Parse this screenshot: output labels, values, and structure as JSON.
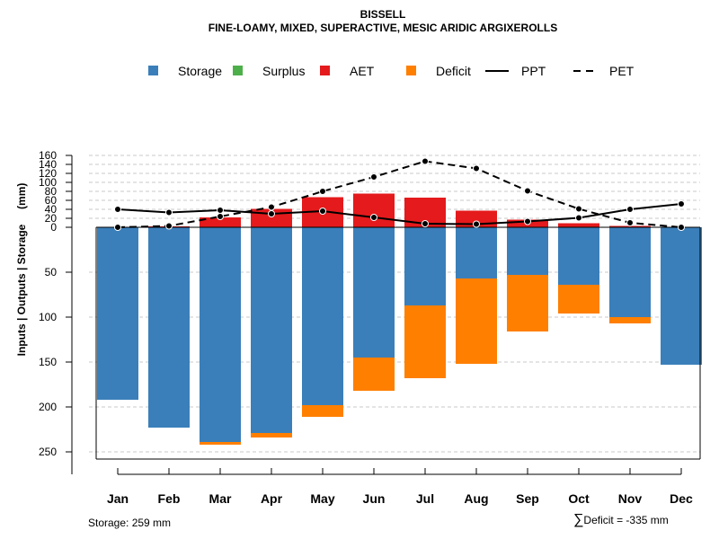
{
  "chart_data": {
    "type": "bar",
    "title": "BISSELL",
    "subtitle": "FINE-LOAMY, MIXED, SUPERACTIVE, MESIC ARIDIC ARGIXEROLLS",
    "ylabel": "Inputs | Outputs | Storage     (mm)",
    "categories": [
      "Jan",
      "Feb",
      "Mar",
      "Apr",
      "May",
      "Jun",
      "Jul",
      "Aug",
      "Sep",
      "Oct",
      "Nov",
      "Dec"
    ],
    "upper_ticks": [
      0,
      20,
      40,
      60,
      80,
      100,
      120,
      140,
      160
    ],
    "lower_ticks": [
      50,
      100,
      150,
      200,
      250
    ],
    "upper_ylim": [
      0,
      160
    ],
    "lower_ylim": [
      0,
      259
    ],
    "legend": [
      {
        "name": "Storage",
        "type": "box",
        "color": "#3a7fba"
      },
      {
        "name": "Surplus",
        "type": "box",
        "color": "#4daf4a"
      },
      {
        "name": "AET",
        "type": "box",
        "color": "#e41a1c"
      },
      {
        "name": "Deficit",
        "type": "box",
        "color": "#ff7f00"
      },
      {
        "name": "PPT",
        "type": "solid-line",
        "color": "#000000"
      },
      {
        "name": "PET",
        "type": "dashed-line",
        "color": "#000000"
      }
    ],
    "series": [
      {
        "name": "Storage",
        "values": [
          192,
          223,
          239,
          229,
          198,
          145,
          87,
          57,
          53,
          64,
          100,
          153
        ]
      },
      {
        "name": "Deficit",
        "values": [
          0,
          0,
          3,
          5,
          13,
          37,
          81,
          95,
          63,
          32,
          7,
          0
        ]
      },
      {
        "name": "AET",
        "values": [
          0,
          2,
          22,
          41,
          67,
          75,
          66,
          37,
          17,
          9,
          3,
          0
        ]
      },
      {
        "name": "Surplus",
        "values": [
          0,
          0,
          0,
          0,
          0,
          0,
          0,
          0,
          0,
          0,
          0,
          0
        ]
      },
      {
        "name": "PPT",
        "values": [
          40,
          33,
          38,
          30,
          36,
          22,
          8,
          7,
          13,
          21,
          40,
          52
        ]
      },
      {
        "name": "PET",
        "values": [
          0,
          3,
          24,
          45,
          80,
          112,
          147,
          131,
          81,
          41,
          10,
          0
        ]
      }
    ],
    "colors": {
      "storage": "#3a7fba",
      "surplus": "#4daf4a",
      "aet": "#e41a1c",
      "deficit": "#ff7f00"
    }
  },
  "notes": {
    "storage": "Storage: 259 mm",
    "deficit_symbol": "∑",
    "deficit": "Deficit = -335 mm"
  }
}
